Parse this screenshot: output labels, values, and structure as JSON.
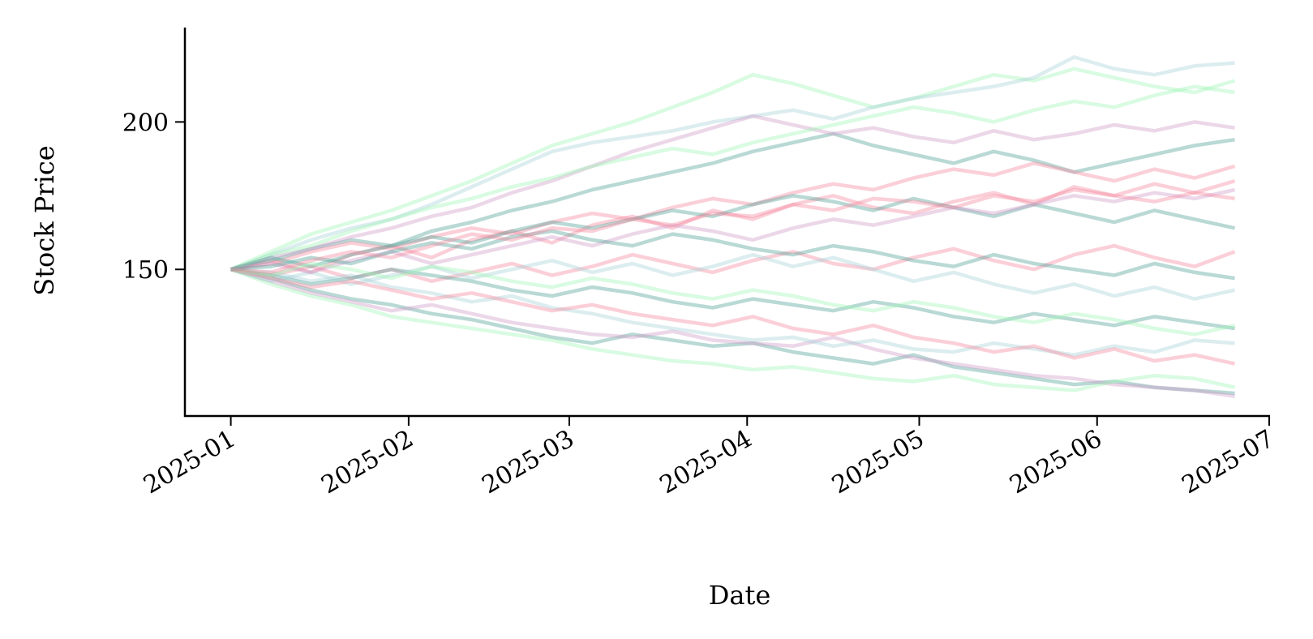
{
  "chart_data": {
    "type": "line",
    "title": "",
    "xlabel": "Date",
    "ylabel": "Stock Price",
    "xlim": [
      "2024-12-24",
      "2025-07-01"
    ],
    "ylim": [
      100.3,
      232
    ],
    "grid": false,
    "legend": "none",
    "x_ticks": [
      "2025-01",
      "2025-02",
      "2025-03",
      "2025-04",
      "2025-05",
      "2025-06",
      "2025-07"
    ],
    "y_ticks": [
      150,
      200
    ],
    "line_opacity": 0.4,
    "palette": [
      "#f4879d",
      "#9ef5b4",
      "#4fa096",
      "#a7d3d6",
      "#cf9cc8"
    ],
    "x": [
      "2025-01-01",
      "2025-01-08",
      "2025-01-15",
      "2025-01-22",
      "2025-01-29",
      "2025-02-05",
      "2025-02-12",
      "2025-02-19",
      "2025-02-26",
      "2025-03-05",
      "2025-03-12",
      "2025-03-19",
      "2025-03-26",
      "2025-04-02",
      "2025-04-09",
      "2025-04-16",
      "2025-04-23",
      "2025-04-30",
      "2025-05-07",
      "2025-05-14",
      "2025-05-21",
      "2025-05-28",
      "2025-06-04",
      "2025-06-11",
      "2025-06-18",
      "2025-06-25"
    ],
    "series": [
      {
        "color": "#f4879d",
        "values": [
          150,
          153,
          149,
          155,
          158,
          154,
          160,
          163,
          159,
          165,
          168,
          164,
          170,
          167,
          172,
          175,
          171,
          169,
          173,
          176,
          172,
          178,
          175,
          179,
          176,
          180
        ]
      },
      {
        "color": "#9ef5b4",
        "values": [
          150,
          156,
          162,
          166,
          170,
          175,
          180,
          186,
          192,
          196,
          200,
          205,
          210,
          216,
          213,
          209,
          205,
          208,
          212,
          216,
          214,
          218,
          215,
          212,
          210,
          214
        ]
      },
      {
        "color": "#4fa096",
        "values": [
          150,
          147,
          143,
          140,
          138,
          135,
          133,
          130,
          127,
          125,
          128,
          126,
          124,
          125,
          122,
          120,
          118,
          121,
          117,
          115,
          113,
          111,
          112,
          110,
          109,
          108
        ]
      },
      {
        "color": "#a7d3d6",
        "values": [
          150,
          155,
          160,
          164,
          167,
          172,
          178,
          184,
          190,
          193,
          195,
          197,
          200,
          202,
          204,
          201,
          205,
          208,
          210,
          212,
          215,
          222,
          218,
          216,
          219,
          220
        ]
      },
      {
        "color": "#cf9cc8",
        "values": [
          150,
          146,
          142,
          139,
          136,
          138,
          135,
          132,
          130,
          128,
          127,
          129,
          126,
          125,
          124,
          127,
          123,
          120,
          118,
          116,
          114,
          113,
          111,
          110,
          109,
          107
        ]
      },
      {
        "color": "#f4879d",
        "values": [
          150,
          148,
          151,
          147,
          150,
          146,
          149,
          152,
          148,
          151,
          155,
          152,
          149,
          153,
          156,
          152,
          150,
          154,
          157,
          153,
          150,
          155,
          158,
          154,
          151,
          156
        ]
      },
      {
        "color": "#4fa096",
        "values": [
          150,
          153,
          157,
          160,
          158,
          163,
          166,
          170,
          173,
          177,
          180,
          183,
          186,
          190,
          193,
          196,
          192,
          189,
          186,
          190,
          187,
          183,
          186,
          189,
          192,
          194
        ]
      },
      {
        "color": "#9ef5b4",
        "values": [
          150,
          145,
          141,
          138,
          134,
          132,
          130,
          128,
          126,
          123,
          121,
          119,
          118,
          116,
          117,
          115,
          113,
          112,
          114,
          111,
          110,
          109,
          112,
          114,
          113,
          110
        ]
      },
      {
        "color": "#a7d3d6",
        "values": [
          150,
          149,
          146,
          148,
          144,
          142,
          139,
          141,
          137,
          135,
          132,
          130,
          128,
          126,
          127,
          124,
          126,
          123,
          122,
          125,
          123,
          121,
          124,
          122,
          126,
          125
        ]
      },
      {
        "color": "#cf9cc8",
        "values": [
          150,
          154,
          157,
          161,
          164,
          168,
          171,
          176,
          180,
          185,
          190,
          194,
          198,
          202,
          199,
          196,
          198,
          195,
          193,
          197,
          194,
          196,
          199,
          197,
          200,
          198
        ]
      },
      {
        "color": "#f4879d",
        "values": [
          150,
          152,
          156,
          159,
          157,
          161,
          164,
          162,
          166,
          169,
          167,
          171,
          174,
          172,
          176,
          179,
          177,
          181,
          184,
          182,
          186,
          183,
          180,
          184,
          181,
          185
        ]
      },
      {
        "color": "#4fa096",
        "values": [
          150,
          148,
          145,
          147,
          150,
          148,
          146,
          143,
          141,
          144,
          142,
          139,
          137,
          140,
          138,
          136,
          139,
          137,
          134,
          132,
          135,
          133,
          131,
          134,
          132,
          130
        ]
      },
      {
        "color": "#9ef5b4",
        "values": [
          150,
          155,
          158,
          163,
          167,
          171,
          174,
          178,
          181,
          185,
          188,
          191,
          189,
          193,
          196,
          199,
          202,
          205,
          203,
          200,
          204,
          207,
          205,
          209,
          212,
          210
        ]
      },
      {
        "color": "#a7d3d6",
        "values": [
          150,
          146,
          149,
          145,
          148,
          151,
          147,
          150,
          153,
          149,
          152,
          148,
          151,
          155,
          151,
          154,
          150,
          146,
          149,
          145,
          142,
          145,
          141,
          144,
          140,
          143
        ]
      },
      {
        "color": "#f4879d",
        "values": [
          150,
          147,
          144,
          146,
          143,
          140,
          142,
          139,
          136,
          138,
          135,
          133,
          131,
          134,
          130,
          128,
          131,
          127,
          125,
          122,
          124,
          120,
          123,
          119,
          121,
          118
        ]
      },
      {
        "color": "#4fa096",
        "values": [
          150,
          154,
          151,
          155,
          158,
          161,
          159,
          163,
          166,
          164,
          167,
          170,
          168,
          172,
          175,
          173,
          170,
          174,
          171,
          168,
          172,
          169,
          166,
          170,
          167,
          164
        ]
      },
      {
        "color": "#cf9cc8",
        "values": [
          150,
          152,
          149,
          153,
          156,
          152,
          155,
          158,
          161,
          158,
          162,
          165,
          163,
          160,
          164,
          167,
          165,
          168,
          171,
          169,
          172,
          175,
          173,
          176,
          174,
          177
        ]
      },
      {
        "color": "#9ef5b4",
        "values": [
          150,
          148,
          152,
          150,
          147,
          151,
          149,
          146,
          144,
          147,
          145,
          142,
          140,
          143,
          141,
          138,
          136,
          139,
          137,
          134,
          132,
          135,
          133,
          130,
          128,
          131
        ]
      },
      {
        "color": "#4fa096",
        "values": [
          150,
          151,
          154,
          152,
          156,
          159,
          157,
          161,
          163,
          160,
          158,
          162,
          160,
          157,
          155,
          158,
          156,
          153,
          151,
          155,
          152,
          150,
          148,
          152,
          149,
          147
        ]
      },
      {
        "color": "#f4879d",
        "values": [
          150,
          149,
          153,
          156,
          154,
          158,
          162,
          160,
          164,
          163,
          167,
          165,
          169,
          168,
          172,
          170,
          174,
          173,
          171,
          175,
          173,
          177,
          175,
          173,
          176,
          174
        ]
      }
    ]
  }
}
